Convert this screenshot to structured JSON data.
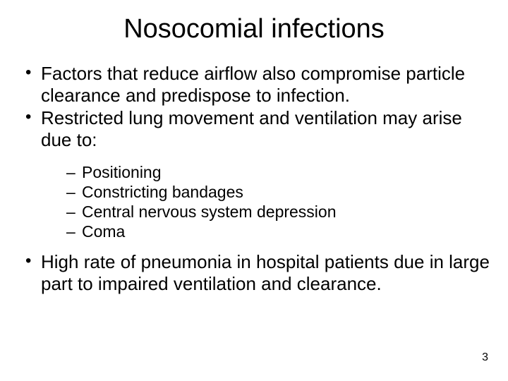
{
  "title": "Nosocomial infections",
  "bullets": [
    "Factors that reduce airflow also compromise particle clearance and predispose to infection.",
    "Restricted lung movement and ventilation may arise due to:",
    "High rate of pneumonia in hospital patients due in large part to impaired ventilation and clearance."
  ],
  "sub_bullets": [
    "Positioning",
    "Constricting bandages",
    "Central nervous system depression",
    "Coma"
  ],
  "page_number": "3",
  "colors": {
    "background": "#ffffff",
    "text": "#000000"
  },
  "typography": {
    "title_fontsize": 38,
    "bullet_l1_fontsize": 26,
    "bullet_l2_fontsize": 23,
    "pagenum_fontsize": 16,
    "font_family": "Arial"
  }
}
